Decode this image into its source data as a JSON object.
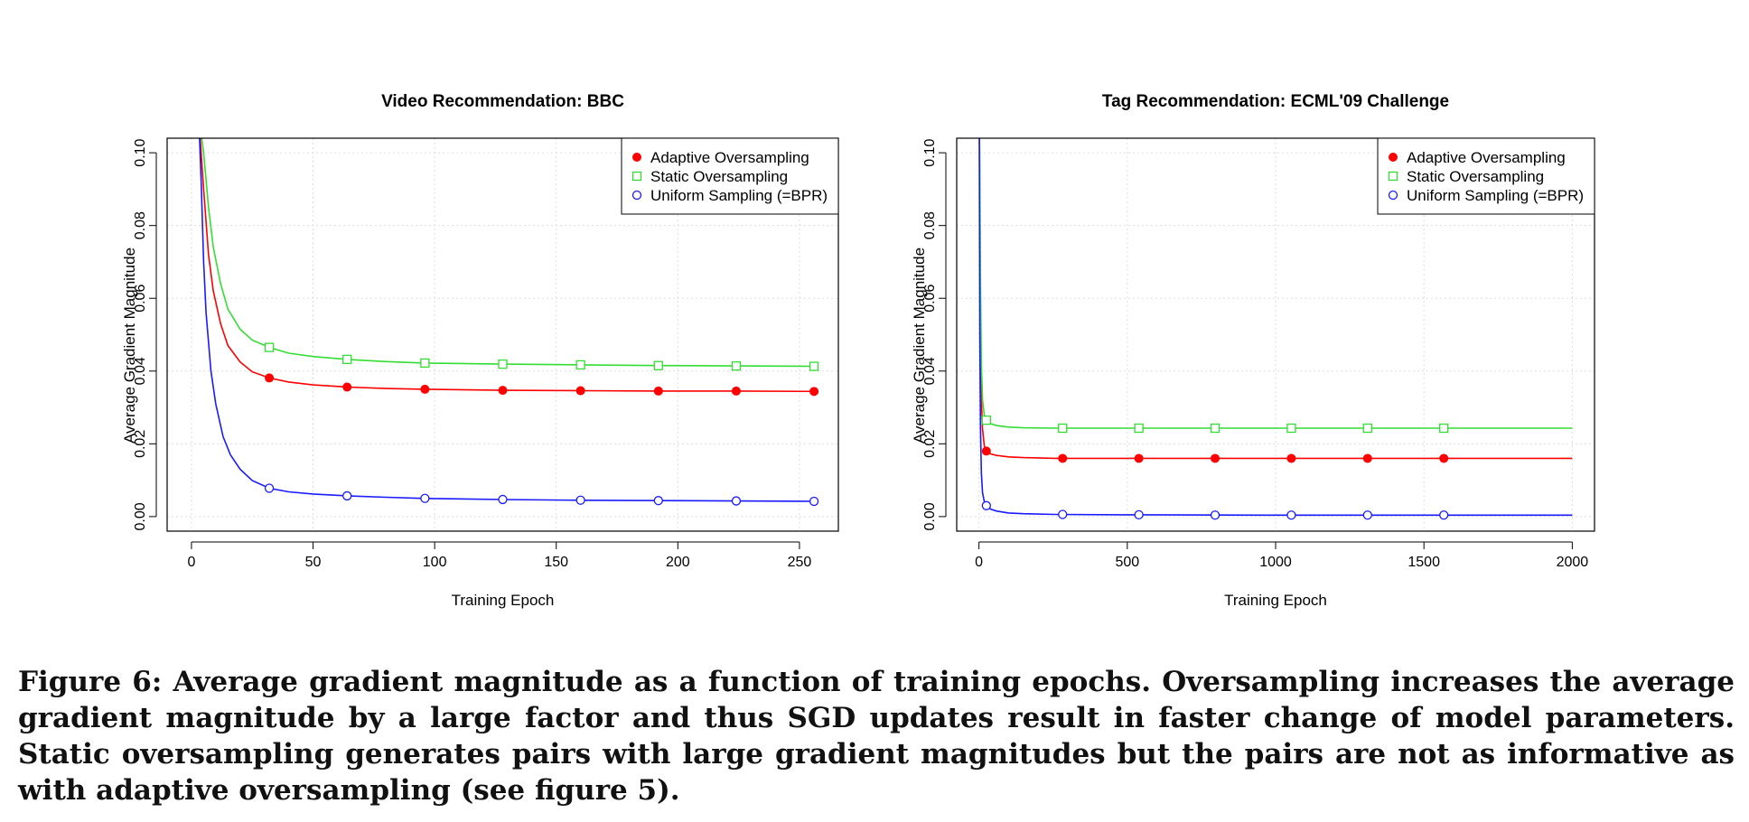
{
  "caption": "Figure 6: Average gradient magnitude as a function of training epochs. Oversampling increases the average gradient magnitude by a large factor and thus SGD updates result in faster change of model parameters. Static oversampling generates pairs with large gradient magnitudes but the pairs are not as informative as with adaptive oversampling (see figure 5).",
  "colors": {
    "adaptive": "#ff0000",
    "static": "#33dd33",
    "uniform": "#1a1aff",
    "grid": "#dddddd"
  },
  "chart_data": [
    {
      "type": "line",
      "title": "Video Recommendation: BBC",
      "xlabel": "Training Epoch",
      "ylabel": "Average Gradient Magnitude",
      "xlim": [
        -10,
        266
      ],
      "ylim": [
        -0.004,
        0.104
      ],
      "xticks": [
        0,
        50,
        100,
        150,
        200,
        250
      ],
      "yticks": [
        0.0,
        0.02,
        0.04,
        0.06,
        0.08,
        0.1
      ],
      "ytick_labels": [
        "0.00",
        "0.02",
        "0.04",
        "0.06",
        "0.08",
        "0.10"
      ],
      "grid": true,
      "legend_position": "top-right",
      "series": [
        {
          "name": "Adaptive Oversampling",
          "color_key": "adaptive",
          "marker": "filled-circle",
          "x": [
            3,
            5,
            7,
            9,
            12,
            15,
            20,
            25,
            32,
            40,
            50,
            64,
            80,
            96,
            128,
            160,
            192,
            224,
            256
          ],
          "y": [
            0.11,
            0.09,
            0.072,
            0.062,
            0.053,
            0.047,
            0.0425,
            0.0398,
            0.0381,
            0.037,
            0.0362,
            0.0356,
            0.0352,
            0.035,
            0.0347,
            0.0346,
            0.0345,
            0.0345,
            0.0344
          ],
          "marker_x": [
            32,
            64,
            96,
            128,
            160,
            192,
            224,
            256
          ],
          "marker_y": [
            0.0381,
            0.0356,
            0.035,
            0.0347,
            0.0346,
            0.0345,
            0.0345,
            0.0344
          ]
        },
        {
          "name": "Static Oversampling",
          "color_key": "static",
          "marker": "open-square",
          "x": [
            3,
            5,
            7,
            9,
            12,
            15,
            20,
            25,
            32,
            40,
            50,
            64,
            80,
            96,
            128,
            160,
            192,
            224,
            256
          ],
          "y": [
            0.11,
            0.1,
            0.085,
            0.074,
            0.064,
            0.057,
            0.0515,
            0.0485,
            0.0465,
            0.0449,
            0.044,
            0.0432,
            0.0426,
            0.0422,
            0.0419,
            0.0417,
            0.0415,
            0.0414,
            0.0413
          ],
          "marker_x": [
            32,
            64,
            96,
            128,
            160,
            192,
            224,
            256
          ],
          "marker_y": [
            0.0465,
            0.0432,
            0.0422,
            0.0419,
            0.0417,
            0.0415,
            0.0414,
            0.0413
          ]
        },
        {
          "name": "Uniform Sampling (=BPR)",
          "color_key": "uniform",
          "marker": "open-circle",
          "x": [
            3,
            4,
            5,
            6,
            8,
            10,
            13,
            16,
            20,
            25,
            32,
            40,
            50,
            64,
            80,
            96,
            128,
            160,
            192,
            224,
            256
          ],
          "y": [
            0.11,
            0.092,
            0.07,
            0.056,
            0.04,
            0.031,
            0.022,
            0.017,
            0.013,
            0.0099,
            0.0078,
            0.0068,
            0.0062,
            0.0057,
            0.0053,
            0.005,
            0.0047,
            0.0045,
            0.0044,
            0.0043,
            0.0042
          ],
          "marker_x": [
            32,
            64,
            96,
            128,
            160,
            192,
            224,
            256
          ],
          "marker_y": [
            0.0078,
            0.0057,
            0.005,
            0.0047,
            0.0045,
            0.0044,
            0.0043,
            0.0042
          ]
        }
      ]
    },
    {
      "type": "line",
      "title": "Tag Recommendation: ECML'09 Challenge",
      "xlabel": "Training Epoch",
      "ylabel": "Average Gradient Magnitude",
      "xlim": [
        -75,
        2075
      ],
      "ylim": [
        -0.004,
        0.104
      ],
      "xticks": [
        0,
        500,
        1000,
        1500,
        2000
      ],
      "yticks": [
        0.0,
        0.02,
        0.04,
        0.06,
        0.08,
        0.1
      ],
      "ytick_labels": [
        "0.00",
        "0.02",
        "0.04",
        "0.06",
        "0.08",
        "0.10"
      ],
      "grid": true,
      "legend_position": "top-right",
      "series": [
        {
          "name": "Adaptive Oversampling",
          "color_key": "adaptive",
          "marker": "filled-circle",
          "x": [
            1,
            3,
            5,
            8,
            12,
            18,
            25,
            40,
            60,
            100,
            150,
            257,
            500,
            1000,
            1500,
            2000
          ],
          "y": [
            0.11,
            0.08,
            0.05,
            0.032,
            0.024,
            0.0195,
            0.018,
            0.0172,
            0.0168,
            0.0164,
            0.0162,
            0.016,
            0.016,
            0.016,
            0.016,
            0.016
          ],
          "marker_x": [
            25,
            282,
            539,
            796,
            1053,
            1310,
            1567
          ],
          "marker_y": [
            0.018,
            0.016,
            0.016,
            0.016,
            0.016,
            0.016,
            0.016
          ]
        },
        {
          "name": "Static Oversampling",
          "color_key": "static",
          "marker": "open-square",
          "x": [
            1,
            3,
            5,
            8,
            12,
            18,
            25,
            40,
            60,
            100,
            150,
            257,
            500,
            1000,
            1500,
            2000
          ],
          "y": [
            0.11,
            0.095,
            0.065,
            0.042,
            0.032,
            0.028,
            0.0265,
            0.0255,
            0.025,
            0.0246,
            0.0244,
            0.0243,
            0.0243,
            0.0243,
            0.0243,
            0.0243
          ],
          "marker_x": [
            25,
            282,
            539,
            796,
            1053,
            1310,
            1567
          ],
          "marker_y": [
            0.0265,
            0.0243,
            0.0243,
            0.0243,
            0.0243,
            0.0243,
            0.0243
          ]
        },
        {
          "name": "Uniform Sampling (=BPR)",
          "color_key": "uniform",
          "marker": "open-circle",
          "x": [
            1,
            3,
            5,
            8,
            12,
            18,
            25,
            40,
            60,
            100,
            150,
            257,
            500,
            1000,
            1500,
            2000
          ],
          "y": [
            0.11,
            0.05,
            0.025,
            0.012,
            0.0065,
            0.0042,
            0.003,
            0.002,
            0.0015,
            0.001,
            0.0008,
            0.0006,
            0.0005,
            0.0004,
            0.0004,
            0.0004
          ],
          "marker_x": [
            25,
            282,
            539,
            796,
            1053,
            1310,
            1567
          ],
          "marker_y": [
            0.003,
            0.0006,
            0.0005,
            0.0004,
            0.0004,
            0.0004,
            0.0004
          ]
        }
      ]
    }
  ]
}
